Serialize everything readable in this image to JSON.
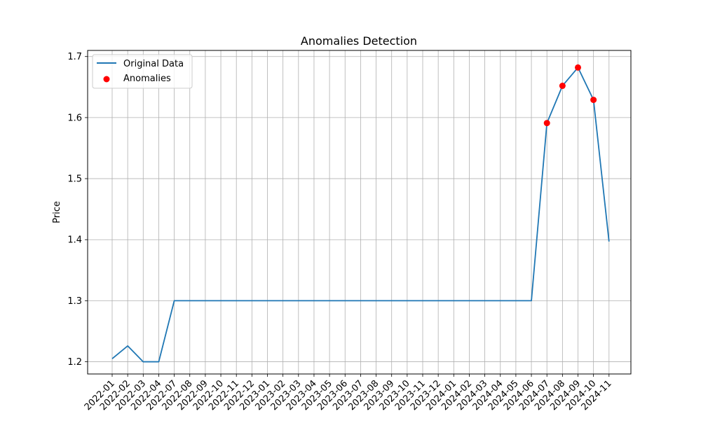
{
  "chart_data": {
    "type": "line",
    "title": "Anomalies Detection",
    "xlabel": "",
    "ylabel": "Price",
    "grid": true,
    "legend_position": "top-left",
    "ylim": [
      1.18,
      1.71
    ],
    "yticks": [
      1.2,
      1.3,
      1.4,
      1.5,
      1.6,
      1.7
    ],
    "ytick_labels": [
      "1.2",
      "1.3",
      "1.4",
      "1.5",
      "1.6",
      "1.7"
    ],
    "categories": [
      "2022-01",
      "2022-02",
      "2022-03",
      "2022-04",
      "2022-07",
      "2022-08",
      "2022-09",
      "2022-10",
      "2022-11",
      "2022-12",
      "2023-01",
      "2023-02",
      "2023-03",
      "2023-04",
      "2023-05",
      "2023-06",
      "2023-07",
      "2023-08",
      "2023-09",
      "2023-10",
      "2023-11",
      "2023-12",
      "2024-01",
      "2024-02",
      "2024-03",
      "2024-04",
      "2024-05",
      "2024-06",
      "2024-07",
      "2024-08",
      "2024-09",
      "2024-10",
      "2024-11"
    ],
    "series": [
      {
        "name": "Original Data",
        "kind": "line",
        "color": "#1f77b4",
        "values": [
          1.205,
          1.226,
          1.2,
          1.2,
          1.3,
          1.3,
          1.3,
          1.3,
          1.3,
          1.3,
          1.3,
          1.3,
          1.3,
          1.3,
          1.3,
          1.3,
          1.3,
          1.3,
          1.3,
          1.3,
          1.3,
          1.3,
          1.3,
          1.3,
          1.3,
          1.3,
          1.3,
          1.3,
          1.591,
          1.652,
          1.682,
          1.629,
          1.397
        ]
      },
      {
        "name": "Anomalies",
        "kind": "scatter",
        "color": "#ff0000",
        "points": [
          {
            "x": "2024-07",
            "y": 1.591
          },
          {
            "x": "2024-08",
            "y": 1.652
          },
          {
            "x": "2024-09",
            "y": 1.682
          },
          {
            "x": "2024-10",
            "y": 1.629
          }
        ]
      }
    ]
  }
}
